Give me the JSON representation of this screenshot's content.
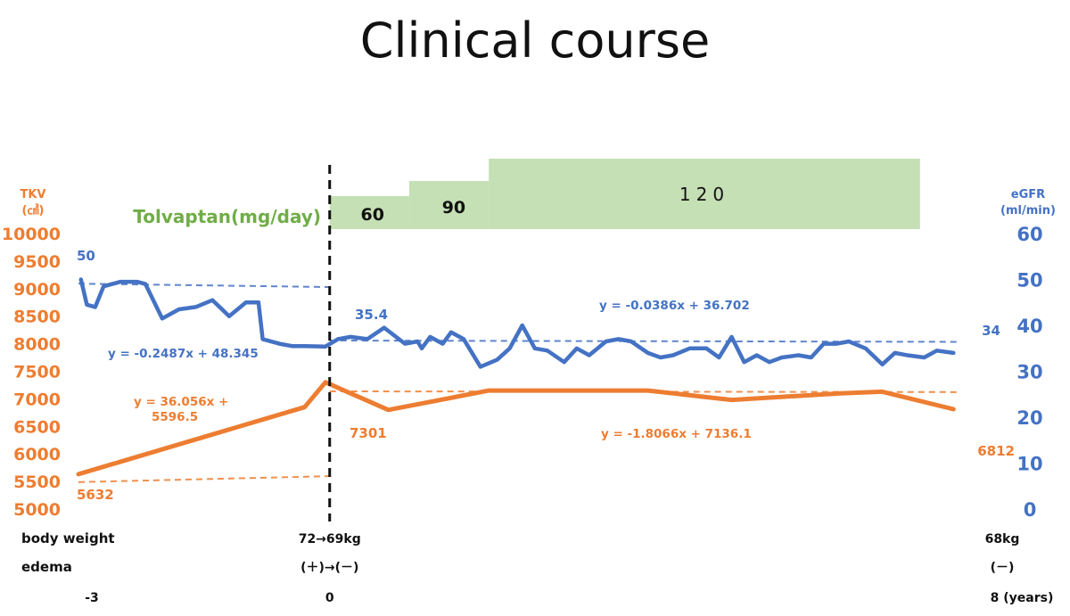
{
  "title": "Clinical course",
  "chart_data": {
    "type": "line",
    "x_axis": {
      "range": [
        -3,
        8
      ],
      "ticks": [
        -3,
        0,
        8
      ],
      "tick_labels": [
        "-3",
        "0",
        "8 (years)"
      ]
    },
    "left_axis": {
      "label_line1": "TKV",
      "label_line2": "(㎤)",
      "range": [
        5000,
        10000
      ],
      "step": 500,
      "color": "#ED7D31"
    },
    "right_axis": {
      "label_line1": "eGFR",
      "label_line2": "(ml/min)",
      "range": [
        0,
        60
      ],
      "step": 10,
      "color": "#4472C4"
    },
    "marker_line_x": 0,
    "tolvaptan": {
      "label": "Tolvaptan(mg/day)",
      "color": "#C5E0B4",
      "label_color": "#70AD47",
      "segments": [
        {
          "dose_label": "60",
          "x_start": 0,
          "x_end": 0.95,
          "level": 1
        },
        {
          "dose_label": "90",
          "x_start": 0.95,
          "x_end": 1.9,
          "level": 2
        },
        {
          "dose_label": "120",
          "x_start": 1.9,
          "x_end": 7.05,
          "level": 3
        }
      ]
    },
    "series": [
      {
        "name": "eGFR",
        "axis": "right",
        "color": "#4472C4",
        "points": [
          [
            -2.97,
            50
          ],
          [
            -2.9,
            44.5
          ],
          [
            -2.8,
            44
          ],
          [
            -2.7,
            48.5
          ],
          [
            -2.5,
            49.5
          ],
          [
            -2.3,
            49.5
          ],
          [
            -2.2,
            49
          ],
          [
            -2.0,
            41.5
          ],
          [
            -1.8,
            43.5
          ],
          [
            -1.6,
            44
          ],
          [
            -1.4,
            45.5
          ],
          [
            -1.2,
            42
          ],
          [
            -1.0,
            45
          ],
          [
            -0.85,
            45
          ],
          [
            -0.8,
            37
          ],
          [
            -0.6,
            36
          ],
          [
            -0.45,
            35.5
          ],
          [
            -0.3,
            35.5
          ],
          [
            -0.05,
            35.4
          ],
          [
            0.1,
            37
          ],
          [
            0.25,
            37.5
          ],
          [
            0.45,
            37
          ],
          [
            0.65,
            39.5
          ],
          [
            0.9,
            36
          ],
          [
            1.05,
            36.5
          ],
          [
            1.1,
            35
          ],
          [
            1.2,
            37.5
          ],
          [
            1.35,
            36
          ],
          [
            1.45,
            38.5
          ],
          [
            1.6,
            37
          ],
          [
            1.8,
            31
          ],
          [
            2.0,
            32.5
          ],
          [
            2.15,
            35
          ],
          [
            2.3,
            40
          ],
          [
            2.45,
            35
          ],
          [
            2.6,
            34.5
          ],
          [
            2.8,
            32
          ],
          [
            2.95,
            35
          ],
          [
            3.1,
            33.5
          ],
          [
            3.3,
            36.5
          ],
          [
            3.45,
            37
          ],
          [
            3.6,
            36.5
          ],
          [
            3.8,
            34
          ],
          [
            3.95,
            33
          ],
          [
            4.1,
            33.5
          ],
          [
            4.3,
            35
          ],
          [
            4.5,
            35
          ],
          [
            4.65,
            33
          ],
          [
            4.8,
            37.5
          ],
          [
            4.95,
            32
          ],
          [
            5.1,
            33.5
          ],
          [
            5.25,
            32
          ],
          [
            5.4,
            33
          ],
          [
            5.6,
            33.5
          ],
          [
            5.75,
            33
          ],
          [
            5.9,
            36
          ],
          [
            6.05,
            36
          ],
          [
            6.2,
            36.5
          ],
          [
            6.4,
            35
          ],
          [
            6.6,
            31.5
          ],
          [
            6.75,
            34
          ],
          [
            6.9,
            33.5
          ],
          [
            7.1,
            33
          ],
          [
            7.25,
            34.5
          ],
          [
            7.45,
            34
          ]
        ],
        "trends": [
          {
            "x_start": -3,
            "x_end": 0,
            "slope": -0.2487,
            "intercept": 48.345,
            "label": "y = -0.2487x + 48.345"
          },
          {
            "x_start": 0,
            "x_end": 7.5,
            "slope": -0.0386,
            "intercept": 36.702,
            "label": "y = -0.0386x + 36.702"
          }
        ],
        "labels": [
          {
            "x": -2.97,
            "y": 50,
            "text": "50"
          },
          {
            "x": 0,
            "y": 35.4,
            "text": "35.4"
          },
          {
            "x": 7.45,
            "y": 34,
            "text": "34"
          }
        ]
      },
      {
        "name": "TKV",
        "axis": "left",
        "color": "#ED7D31",
        "points": [
          [
            -3.0,
            5632
          ],
          [
            -0.3,
            6850
          ],
          [
            -0.05,
            7301
          ],
          [
            0.7,
            6800
          ],
          [
            1.9,
            7150
          ],
          [
            3.8,
            7150
          ],
          [
            4.8,
            6980
          ],
          [
            6.1,
            7100
          ],
          [
            6.6,
            7130
          ],
          [
            7.45,
            6812
          ]
        ],
        "trends": [
          {
            "x_start": -3,
            "x_end": 0,
            "slope": 36.056,
            "intercept": 5596.5,
            "label_line1": "y = 36.056x +",
            "label_line2": "5596.5"
          },
          {
            "x_start": 0,
            "x_end": 7.5,
            "slope": -1.8066,
            "intercept": 7136.1,
            "label": "y = -1.8066x + 7136.1"
          }
        ],
        "labels": [
          {
            "x": -3.0,
            "y": 5632,
            "text": "5632"
          },
          {
            "x": -0.05,
            "y": 7301,
            "text": "7301"
          },
          {
            "x": 7.45,
            "y": 6812,
            "text": "6812"
          }
        ]
      }
    ],
    "rows": [
      {
        "label": "body weight",
        "values": [
          {
            "x": 0,
            "text": "72→69kg"
          },
          {
            "x": 7.45,
            "text": "68kg"
          }
        ]
      },
      {
        "label": "edema",
        "values": [
          {
            "x": 0,
            "text": "(＋)→(－)"
          },
          {
            "x": 7.45,
            "text": "(－)"
          }
        ]
      }
    ]
  }
}
